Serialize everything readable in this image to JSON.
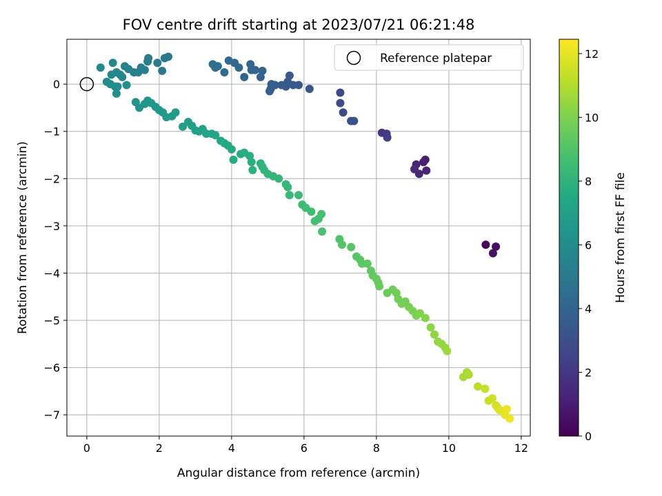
{
  "chart_data": {
    "type": "scatter",
    "title": "FOV centre drift starting at 2023/07/21 06:21:48",
    "xlabel": "Angular distance from reference (arcmin)",
    "ylabel": "Rotation from reference (arcmin)",
    "xlim": [
      -0.55,
      12.25
    ],
    "ylim": [
      -7.45,
      0.95
    ],
    "xticks": [
      0,
      2,
      4,
      6,
      8,
      10,
      12
    ],
    "yticks": [
      0,
      -1,
      -2,
      -3,
      -4,
      -5,
      -6,
      -7
    ],
    "grid": true,
    "colormap": "viridis",
    "legend": {
      "position": "top-right",
      "entries": [
        "Reference platepar"
      ]
    },
    "reference_point": {
      "x": 0,
      "y": 0,
      "label": "Reference platepar"
    },
    "colorbar": {
      "label": "Hours from first FF file",
      "range": [
        0,
        12.45
      ],
      "ticks": [
        0,
        2,
        4,
        6,
        8,
        10,
        12
      ]
    },
    "series": [
      {
        "points": [
          [
            11.02,
            -3.4,
            0.2
          ],
          [
            11.3,
            -3.44,
            0.4
          ],
          [
            11.22,
            -3.58,
            0.6
          ],
          [
            9.35,
            -1.6,
            1.0
          ],
          [
            9.3,
            -1.65,
            1.1
          ],
          [
            9.1,
            -1.7,
            1.2
          ],
          [
            9.38,
            -1.83,
            1.3
          ],
          [
            9.18,
            -1.9,
            1.4
          ],
          [
            9.05,
            -1.8,
            1.5
          ],
          [
            8.15,
            -1.03,
            2.0
          ],
          [
            8.28,
            -1.05,
            2.1
          ],
          [
            8.3,
            -1.13,
            2.2
          ],
          [
            7.0,
            -0.18,
            2.7
          ],
          [
            7.0,
            -0.4,
            2.8
          ],
          [
            7.08,
            -0.6,
            2.9
          ],
          [
            7.3,
            -0.78,
            3.0
          ],
          [
            7.38,
            -0.78,
            3.1
          ],
          [
            6.15,
            -0.1,
            3.3
          ],
          [
            5.85,
            -0.02,
            3.35
          ],
          [
            5.7,
            -0.02,
            3.4
          ],
          [
            5.6,
            0.18,
            3.45
          ],
          [
            5.55,
            0.05,
            3.5
          ],
          [
            5.5,
            -0.05,
            3.55
          ],
          [
            5.38,
            -0.02,
            3.6
          ],
          [
            5.2,
            -0.02,
            3.65
          ],
          [
            5.08,
            -0.1,
            3.7
          ],
          [
            5.05,
            -0.15,
            3.75
          ],
          [
            5.1,
            0.0,
            3.8
          ],
          [
            4.85,
            0.28,
            3.9
          ],
          [
            4.8,
            0.15,
            3.95
          ],
          [
            4.65,
            0.3,
            4.0
          ],
          [
            4.55,
            0.3,
            4.05
          ],
          [
            4.52,
            0.42,
            4.1
          ],
          [
            4.35,
            0.15,
            4.15
          ],
          [
            4.2,
            0.35,
            4.2
          ],
          [
            4.08,
            0.45,
            4.25
          ],
          [
            3.92,
            0.5,
            4.3
          ],
          [
            3.8,
            0.25,
            4.4
          ],
          [
            3.62,
            0.38,
            4.45
          ],
          [
            3.48,
            0.42,
            4.5
          ],
          [
            3.55,
            0.35,
            4.55
          ],
          [
            2.25,
            0.58,
            5.0
          ],
          [
            2.15,
            0.55,
            5.05
          ],
          [
            2.08,
            0.28,
            5.1
          ],
          [
            1.95,
            0.45,
            5.15
          ],
          [
            1.7,
            0.55,
            5.2
          ],
          [
            1.68,
            0.48,
            5.25
          ],
          [
            1.6,
            0.3,
            5.3
          ],
          [
            1.5,
            0.35,
            5.35
          ],
          [
            1.42,
            0.25,
            5.4
          ],
          [
            1.3,
            0.25,
            5.45
          ],
          [
            1.15,
            0.32,
            5.5
          ],
          [
            1.05,
            0.38,
            5.55
          ],
          [
            0.98,
            0.15,
            5.6
          ],
          [
            0.92,
            0.2,
            5.65
          ],
          [
            0.82,
            0.25,
            5.7
          ],
          [
            0.72,
            0.45,
            5.75
          ],
          [
            0.68,
            0.2,
            5.8
          ],
          [
            0.38,
            0.35,
            5.85
          ],
          [
            0.55,
            0.05,
            5.9
          ],
          [
            0.65,
            0.0,
            5.95
          ],
          [
            0.78,
            -0.05,
            6.0
          ],
          [
            0.85,
            -0.05,
            6.05
          ],
          [
            0.82,
            -0.2,
            6.1
          ],
          [
            1.1,
            -0.02,
            6.15
          ],
          [
            1.35,
            -0.38,
            6.3
          ],
          [
            1.45,
            -0.5,
            6.35
          ],
          [
            1.6,
            -0.42,
            6.4
          ],
          [
            1.68,
            -0.35,
            6.45
          ],
          [
            1.78,
            -0.4,
            6.5
          ],
          [
            1.9,
            -0.48,
            6.55
          ],
          [
            2.0,
            -0.55,
            6.6
          ],
          [
            2.1,
            -0.6,
            6.65
          ],
          [
            2.2,
            -0.7,
            6.7
          ],
          [
            2.35,
            -0.68,
            6.75
          ],
          [
            2.45,
            -0.6,
            6.8
          ],
          [
            2.65,
            -0.9,
            6.85
          ],
          [
            2.8,
            -0.8,
            7.0
          ],
          [
            2.9,
            -0.88,
            7.05
          ],
          [
            3.0,
            -0.98,
            7.1
          ],
          [
            3.1,
            -1.0,
            7.15
          ],
          [
            3.2,
            -0.95,
            7.2
          ],
          [
            3.3,
            -1.05,
            7.25
          ],
          [
            3.45,
            -1.05,
            7.3
          ],
          [
            3.55,
            -1.08,
            7.35
          ],
          [
            3.7,
            -1.2,
            7.4
          ],
          [
            3.8,
            -1.25,
            7.45
          ],
          [
            3.9,
            -1.3,
            7.5
          ],
          [
            4.0,
            -1.38,
            7.55
          ],
          [
            4.05,
            -1.6,
            7.6
          ],
          [
            4.25,
            -1.48,
            7.7
          ],
          [
            4.35,
            -1.45,
            7.75
          ],
          [
            4.5,
            -1.52,
            7.8
          ],
          [
            4.55,
            -1.65,
            7.85
          ],
          [
            4.58,
            -1.82,
            7.9
          ],
          [
            4.8,
            -1.68,
            7.95
          ],
          [
            4.85,
            -1.75,
            8.0
          ],
          [
            4.9,
            -1.82,
            8.05
          ],
          [
            5.0,
            -1.9,
            8.1
          ],
          [
            5.15,
            -1.95,
            8.15
          ],
          [
            5.3,
            -2.0,
            8.2
          ],
          [
            5.5,
            -2.12,
            8.25
          ],
          [
            5.55,
            -2.18,
            8.3
          ],
          [
            5.6,
            -2.35,
            8.35
          ],
          [
            5.85,
            -2.35,
            8.45
          ],
          [
            5.95,
            -2.55,
            8.5
          ],
          [
            6.05,
            -2.62,
            8.55
          ],
          [
            6.2,
            -2.7,
            8.6
          ],
          [
            6.3,
            -2.9,
            8.65
          ],
          [
            6.4,
            -2.85,
            8.7
          ],
          [
            6.48,
            -2.75,
            8.75
          ],
          [
            6.5,
            -3.12,
            8.8
          ],
          [
            6.98,
            -3.28,
            9.0
          ],
          [
            7.05,
            -3.4,
            9.05
          ],
          [
            7.3,
            -3.45,
            9.1
          ],
          [
            7.45,
            -3.65,
            9.15
          ],
          [
            7.55,
            -3.72,
            9.2
          ],
          [
            7.6,
            -3.8,
            9.25
          ],
          [
            7.75,
            -3.8,
            9.3
          ],
          [
            7.85,
            -3.95,
            9.35
          ],
          [
            7.9,
            -4.05,
            9.4
          ],
          [
            8.0,
            -4.12,
            9.45
          ],
          [
            8.05,
            -4.2,
            9.5
          ],
          [
            8.08,
            -4.28,
            9.55
          ],
          [
            8.3,
            -4.42,
            9.6
          ],
          [
            8.45,
            -4.35,
            9.65
          ],
          [
            8.55,
            -4.42,
            9.7
          ],
          [
            8.6,
            -4.55,
            9.75
          ],
          [
            8.7,
            -4.65,
            9.8
          ],
          [
            8.8,
            -4.6,
            9.85
          ],
          [
            8.9,
            -4.72,
            9.9
          ],
          [
            9.0,
            -4.8,
            9.95
          ],
          [
            9.1,
            -4.9,
            10.0
          ],
          [
            9.2,
            -4.85,
            10.1
          ],
          [
            9.35,
            -4.95,
            10.15
          ],
          [
            9.5,
            -5.15,
            10.3
          ],
          [
            9.6,
            -5.3,
            10.35
          ],
          [
            9.7,
            -5.45,
            10.4
          ],
          [
            9.8,
            -5.5,
            10.45
          ],
          [
            9.9,
            -5.58,
            10.5
          ],
          [
            9.95,
            -5.65,
            10.55
          ],
          [
            10.4,
            -6.2,
            10.8
          ],
          [
            10.5,
            -6.1,
            10.85
          ],
          [
            10.55,
            -6.15,
            10.9
          ],
          [
            10.8,
            -6.4,
            11.2
          ],
          [
            11.0,
            -6.45,
            11.3
          ],
          [
            11.1,
            -6.7,
            11.4
          ],
          [
            11.2,
            -6.65,
            11.5
          ],
          [
            11.3,
            -6.8,
            11.6
          ],
          [
            11.35,
            -6.85,
            11.7
          ],
          [
            11.4,
            -6.9,
            11.8
          ],
          [
            11.5,
            -6.92,
            11.9
          ],
          [
            11.55,
            -7.0,
            12.0
          ],
          [
            11.6,
            -6.88,
            12.1
          ],
          [
            11.68,
            -7.08,
            12.2
          ]
        ]
      }
    ]
  }
}
